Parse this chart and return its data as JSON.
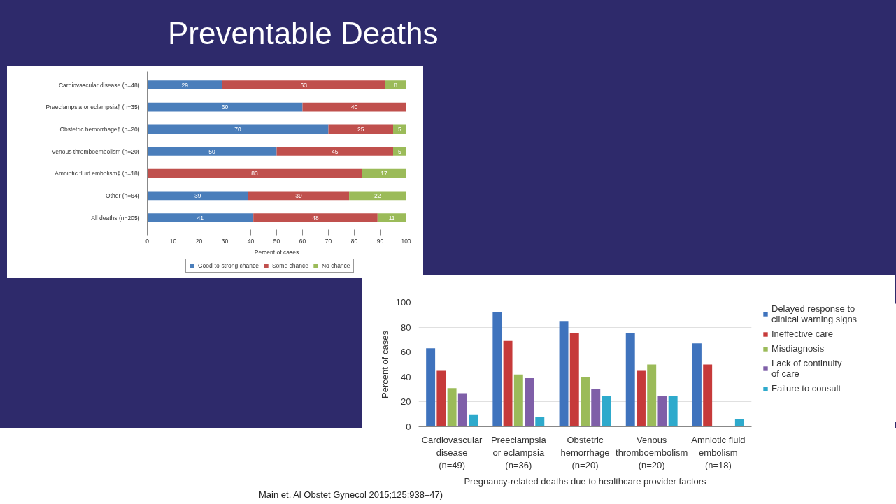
{
  "chart_data": [
    {
      "type": "bar",
      "title": "Preventable Deaths",
      "orientation": "horizontal",
      "stacked": true,
      "data_labels": true,
      "xlabel": "Percent of cases",
      "categories": [
        "Cardiovascular disease (n=48)",
        "Preeclampsia or eclampsia† (n=35)",
        "Obstetric hemorrhage† (n=20)",
        "Venous thromboembolism (n=20)",
        "Amniotic fluid embolism‡ (n=18)",
        "Other (n=64)",
        "All deaths (n=205)"
      ],
      "series": [
        {
          "name": "Good-to-strong chance",
          "color": "#4a7ebb",
          "values": [
            29,
            60,
            70,
            50,
            null,
            39,
            41
          ]
        },
        {
          "name": "Some chance",
          "color": "#c0504d",
          "values": [
            63,
            40,
            25,
            45,
            83,
            39,
            48
          ]
        },
        {
          "name": "No chance",
          "color": "#9bbb59",
          "values": [
            8,
            null,
            5,
            5,
            17,
            22,
            11
          ]
        }
      ],
      "xlim": [
        0,
        100
      ],
      "xticks": [
        0,
        10,
        20,
        30,
        40,
        50,
        60,
        70,
        80,
        90,
        100
      ],
      "grid": false,
      "legend": "bottom"
    },
    {
      "type": "bar",
      "ylabel": "Percent of cases",
      "xlabel": "Pregnancy-related deaths due to healthcare provider factors",
      "categories": [
        "Cardiovascular\ndisease\n(n=49)",
        "Preeclampsia\nor eclampsia\n(n=36)",
        "Obstetric\nhemorrhage\n(n=20)",
        "Venous\nthromboembolism\n(n=20)",
        "Amniotic fluid\nembolism\n(n=18)"
      ],
      "series": [
        {
          "name": "Delayed response to\nclinical warning signs",
          "color": "#3f73bd",
          "values": [
            63,
            92,
            85,
            75,
            67
          ]
        },
        {
          "name": "Ineffective care",
          "color": "#c63a3a",
          "values": [
            45,
            69,
            75,
            45,
            50
          ]
        },
        {
          "name": "Misdiagnosis",
          "color": "#9bbb59",
          "values": [
            31,
            42,
            40,
            50,
            null
          ]
        },
        {
          "name": "Lack of continuity\nof care",
          "color": "#7f5fa8",
          "values": [
            27,
            39,
            30,
            25,
            null
          ]
        },
        {
          "name": "Failure to consult",
          "color": "#2eaacc",
          "values": [
            10,
            8,
            25,
            25,
            6
          ]
        }
      ],
      "ylim": [
        0,
        100
      ],
      "yticks": [
        0,
        20,
        40,
        60,
        80,
        100
      ],
      "grid": "y",
      "legend": "right",
      "annotations": [
        "Main et. Al Obstet Gynecol 2015;125:938–47)"
      ]
    }
  ]
}
